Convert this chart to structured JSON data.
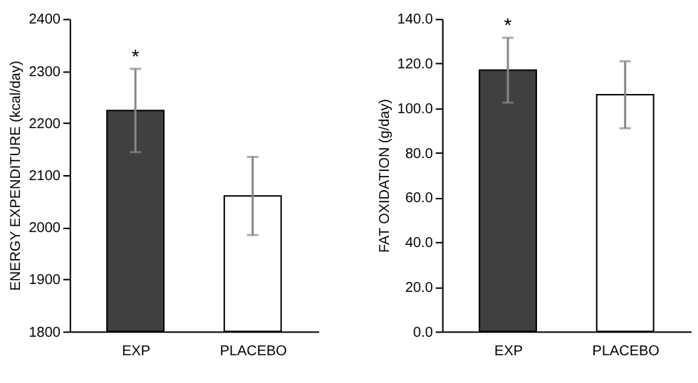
{
  "chart_data": [
    {
      "type": "bar",
      "ylabel": "ENERGY EXPENDITURE (kcal/day)",
      "categories": [
        "EXP",
        "PLACEBO"
      ],
      "values": [
        2224,
        2060
      ],
      "colors": [
        "#404040",
        "#ffffff"
      ],
      "errors": [
        80,
        75
      ],
      "ylim": [
        1800,
        2400
      ],
      "yticks": [
        1800,
        1900,
        2000,
        2100,
        2200,
        2300,
        2400
      ],
      "grid": false,
      "annotations": [
        {
          "text": "*",
          "x": "EXP",
          "y": 2304
        }
      ]
    },
    {
      "type": "bar",
      "ylabel": "FAT OXIDATION (g/day)",
      "categories": [
        "EXP",
        "PLACEBO"
      ],
      "values": [
        117,
        106
      ],
      "colors": [
        "#404040",
        "#ffffff"
      ],
      "errors": [
        14.5,
        15
      ],
      "ylim": [
        0,
        140
      ],
      "yticks": [
        {
          "value": 0,
          "label": "0.0"
        },
        {
          "value": 20,
          "label": "20.0"
        },
        {
          "value": 40,
          "label": "40.0"
        },
        {
          "value": 60,
          "label": "60.0"
        },
        {
          "value": 80,
          "label": "80.0"
        },
        {
          "value": 100,
          "label": "100.0"
        },
        {
          "value": 120,
          "label": "120.0"
        },
        {
          "value": 140,
          "label": "140.0"
        }
      ],
      "grid": false,
      "annotations": [
        {
          "text": "*",
          "x": "EXP",
          "y": 131.5
        }
      ]
    }
  ]
}
